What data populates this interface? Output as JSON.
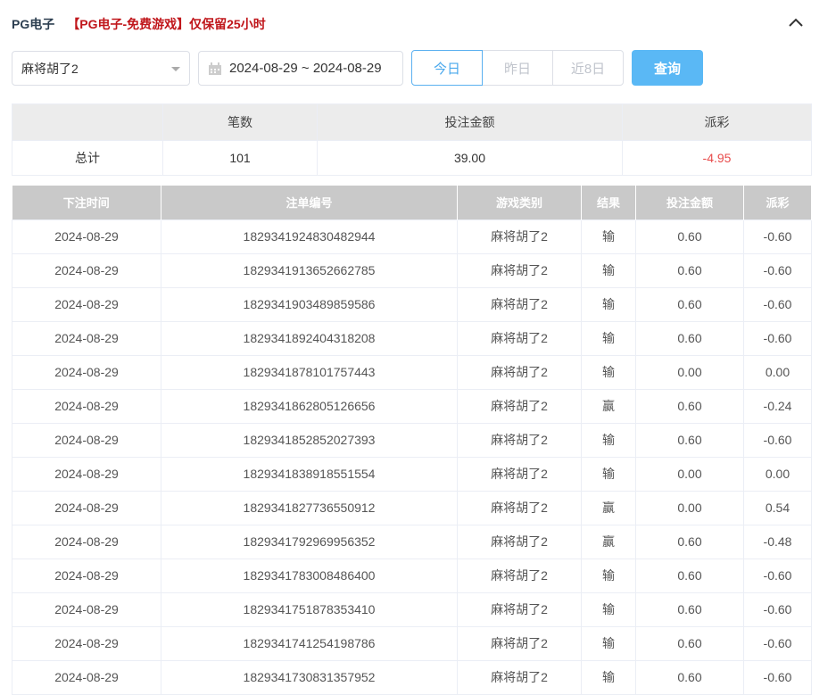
{
  "header": {
    "title": "PG电子",
    "notice": "【PG电子-免费游戏】仅保留25小时"
  },
  "filters": {
    "game_select": "麻将胡了2",
    "date_range": "2024-08-29 ~ 2024-08-29",
    "quick": [
      "今日",
      "昨日",
      "近8日"
    ],
    "active_quick": "今日",
    "query_label": "查询"
  },
  "summary": {
    "headers": [
      "",
      "笔数",
      "投注金额",
      "派彩"
    ],
    "row": [
      "总计",
      "101",
      "39.00",
      "-4.95"
    ]
  },
  "table": {
    "headers": [
      "下注时间",
      "注单编号",
      "游戏类别",
      "结果",
      "投注金额",
      "派彩"
    ],
    "rows": [
      [
        "2024-08-29",
        "1829341924830482944",
        "麻将胡了2",
        "输",
        "0.60",
        "-0.60"
      ],
      [
        "2024-08-29",
        "1829341913652662785",
        "麻将胡了2",
        "输",
        "0.60",
        "-0.60"
      ],
      [
        "2024-08-29",
        "1829341903489859586",
        "麻将胡了2",
        "输",
        "0.60",
        "-0.60"
      ],
      [
        "2024-08-29",
        "1829341892404318208",
        "麻将胡了2",
        "输",
        "0.60",
        "-0.60"
      ],
      [
        "2024-08-29",
        "1829341878101757443",
        "麻将胡了2",
        "输",
        "0.00",
        "0.00"
      ],
      [
        "2024-08-29",
        "1829341862805126656",
        "麻将胡了2",
        "赢",
        "0.60",
        "-0.24"
      ],
      [
        "2024-08-29",
        "1829341852852027393",
        "麻将胡了2",
        "输",
        "0.60",
        "-0.60"
      ],
      [
        "2024-08-29",
        "1829341838918551554",
        "麻将胡了2",
        "输",
        "0.00",
        "0.00"
      ],
      [
        "2024-08-29",
        "1829341827736550912",
        "麻将胡了2",
        "赢",
        "0.00",
        "0.54"
      ],
      [
        "2024-08-29",
        "1829341792969956352",
        "麻将胡了2",
        "赢",
        "0.60",
        "-0.48"
      ],
      [
        "2024-08-29",
        "1829341783008486400",
        "麻将胡了2",
        "输",
        "0.60",
        "-0.60"
      ],
      [
        "2024-08-29",
        "1829341751878353410",
        "麻将胡了2",
        "输",
        "0.60",
        "-0.60"
      ],
      [
        "2024-08-29",
        "1829341741254198786",
        "麻将胡了2",
        "输",
        "0.60",
        "-0.60"
      ],
      [
        "2024-08-29",
        "1829341730831357952",
        "麻将胡了2",
        "输",
        "0.60",
        "-0.60"
      ]
    ]
  },
  "colors": {
    "negative": "#e84c4c",
    "accent": "#5ab8f5",
    "notice": "#c0161b"
  }
}
